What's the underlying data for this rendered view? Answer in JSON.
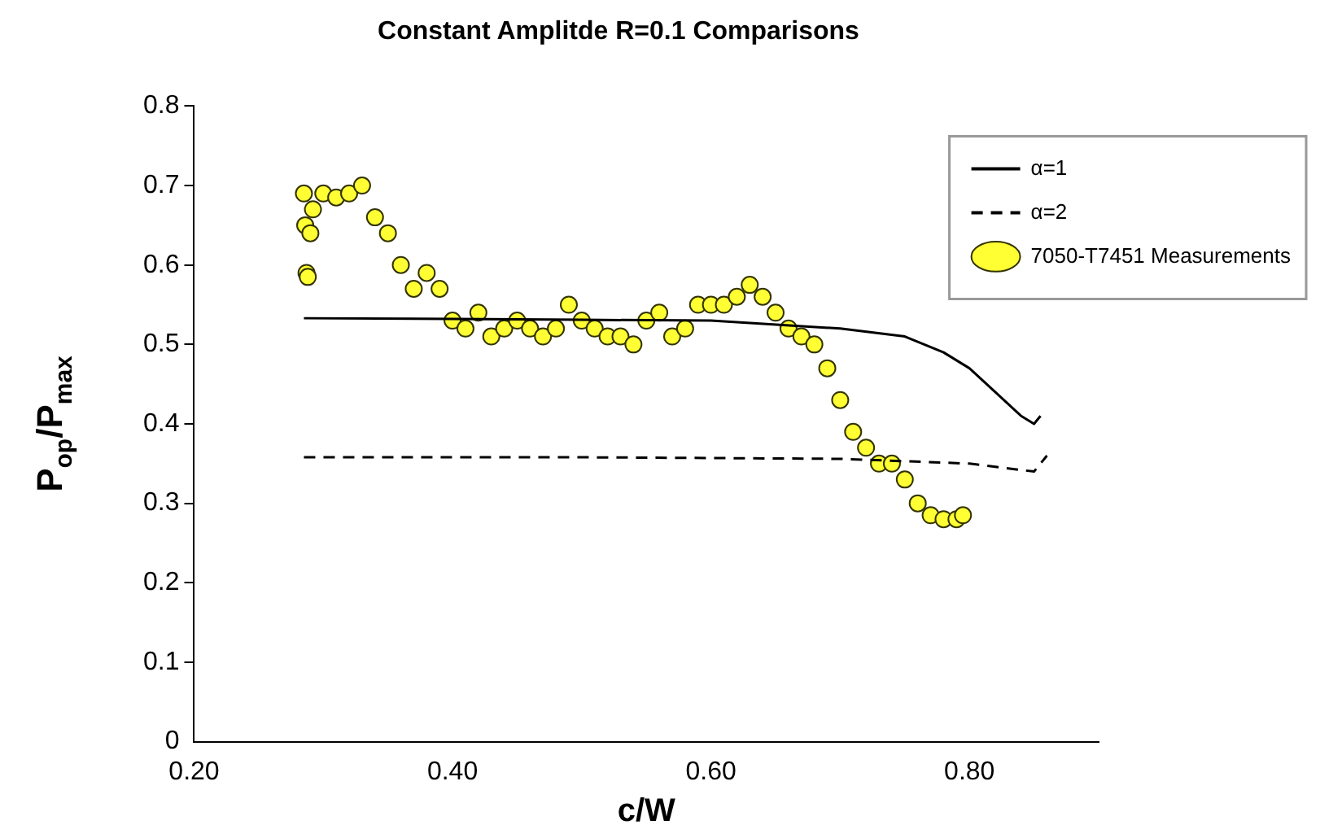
{
  "chart_data": {
    "type": "line",
    "title": "Constant Amplitde R=0.1 Comparisons",
    "xlabel": "c/W",
    "ylabel": "P$_{op}$/P$_{max}$",
    "xlim": [
      0.2,
      0.9
    ],
    "xticks": [
      {
        "value": 0.2,
        "label": "0.20"
      },
      {
        "value": 0.4,
        "label": "0.40"
      },
      {
        "value": 0.6,
        "label": "0.60"
      },
      {
        "value": 0.8,
        "label": "0.80"
      }
    ],
    "ylim": [
      0,
      0.8
    ],
    "yticks": [
      0,
      0.1,
      0.2,
      0.3,
      0.4,
      0.5,
      0.6,
      0.7,
      0.8
    ],
    "grid": false,
    "legend": "top right",
    "series": [
      {
        "name": "α=1",
        "type": "line",
        "color": "#000000",
        "line_style": "solid",
        "marker": "none",
        "x": [
          0.285,
          0.4,
          0.5,
          0.6,
          0.7,
          0.75,
          0.78,
          0.8,
          0.82,
          0.84,
          0.85,
          0.855
        ],
        "values": [
          0.533,
          0.532,
          0.531,
          0.53,
          0.52,
          0.51,
          0.49,
          0.47,
          0.44,
          0.41,
          0.4,
          0.41
        ]
      },
      {
        "name": "α=2",
        "type": "line",
        "color": "#000000",
        "line_style": "dashed",
        "marker": "none",
        "x": [
          0.285,
          0.5,
          0.7,
          0.8,
          0.85,
          0.86
        ],
        "values": [
          0.358,
          0.358,
          0.356,
          0.35,
          0.34,
          0.36
        ]
      },
      {
        "name": "7050-T7451 Measurements",
        "type": "scatter",
        "color": "#ffff33",
        "marker": "circle",
        "x": [
          0.285,
          0.286,
          0.287,
          0.288,
          0.29,
          0.292,
          0.3,
          0.31,
          0.32,
          0.33,
          0.34,
          0.35,
          0.36,
          0.37,
          0.38,
          0.39,
          0.4,
          0.41,
          0.42,
          0.43,
          0.44,
          0.45,
          0.46,
          0.47,
          0.48,
          0.49,
          0.5,
          0.51,
          0.52,
          0.53,
          0.54,
          0.55,
          0.56,
          0.57,
          0.58,
          0.59,
          0.6,
          0.61,
          0.62,
          0.63,
          0.64,
          0.65,
          0.66,
          0.67,
          0.68,
          0.69,
          0.7,
          0.71,
          0.72,
          0.73,
          0.74,
          0.75,
          0.76,
          0.77,
          0.78,
          0.79,
          0.795
        ],
        "values": [
          0.69,
          0.65,
          0.59,
          0.585,
          0.64,
          0.67,
          0.69,
          0.685,
          0.69,
          0.7,
          0.66,
          0.64,
          0.6,
          0.57,
          0.59,
          0.57,
          0.53,
          0.52,
          0.54,
          0.51,
          0.52,
          0.53,
          0.52,
          0.51,
          0.52,
          0.55,
          0.53,
          0.52,
          0.51,
          0.51,
          0.5,
          0.53,
          0.54,
          0.51,
          0.52,
          0.55,
          0.55,
          0.55,
          0.56,
          0.575,
          0.56,
          0.54,
          0.52,
          0.51,
          0.5,
          0.47,
          0.43,
          0.39,
          0.37,
          0.35,
          0.35,
          0.33,
          0.3,
          0.285,
          0.28,
          0.28,
          0.285
        ]
      }
    ]
  }
}
